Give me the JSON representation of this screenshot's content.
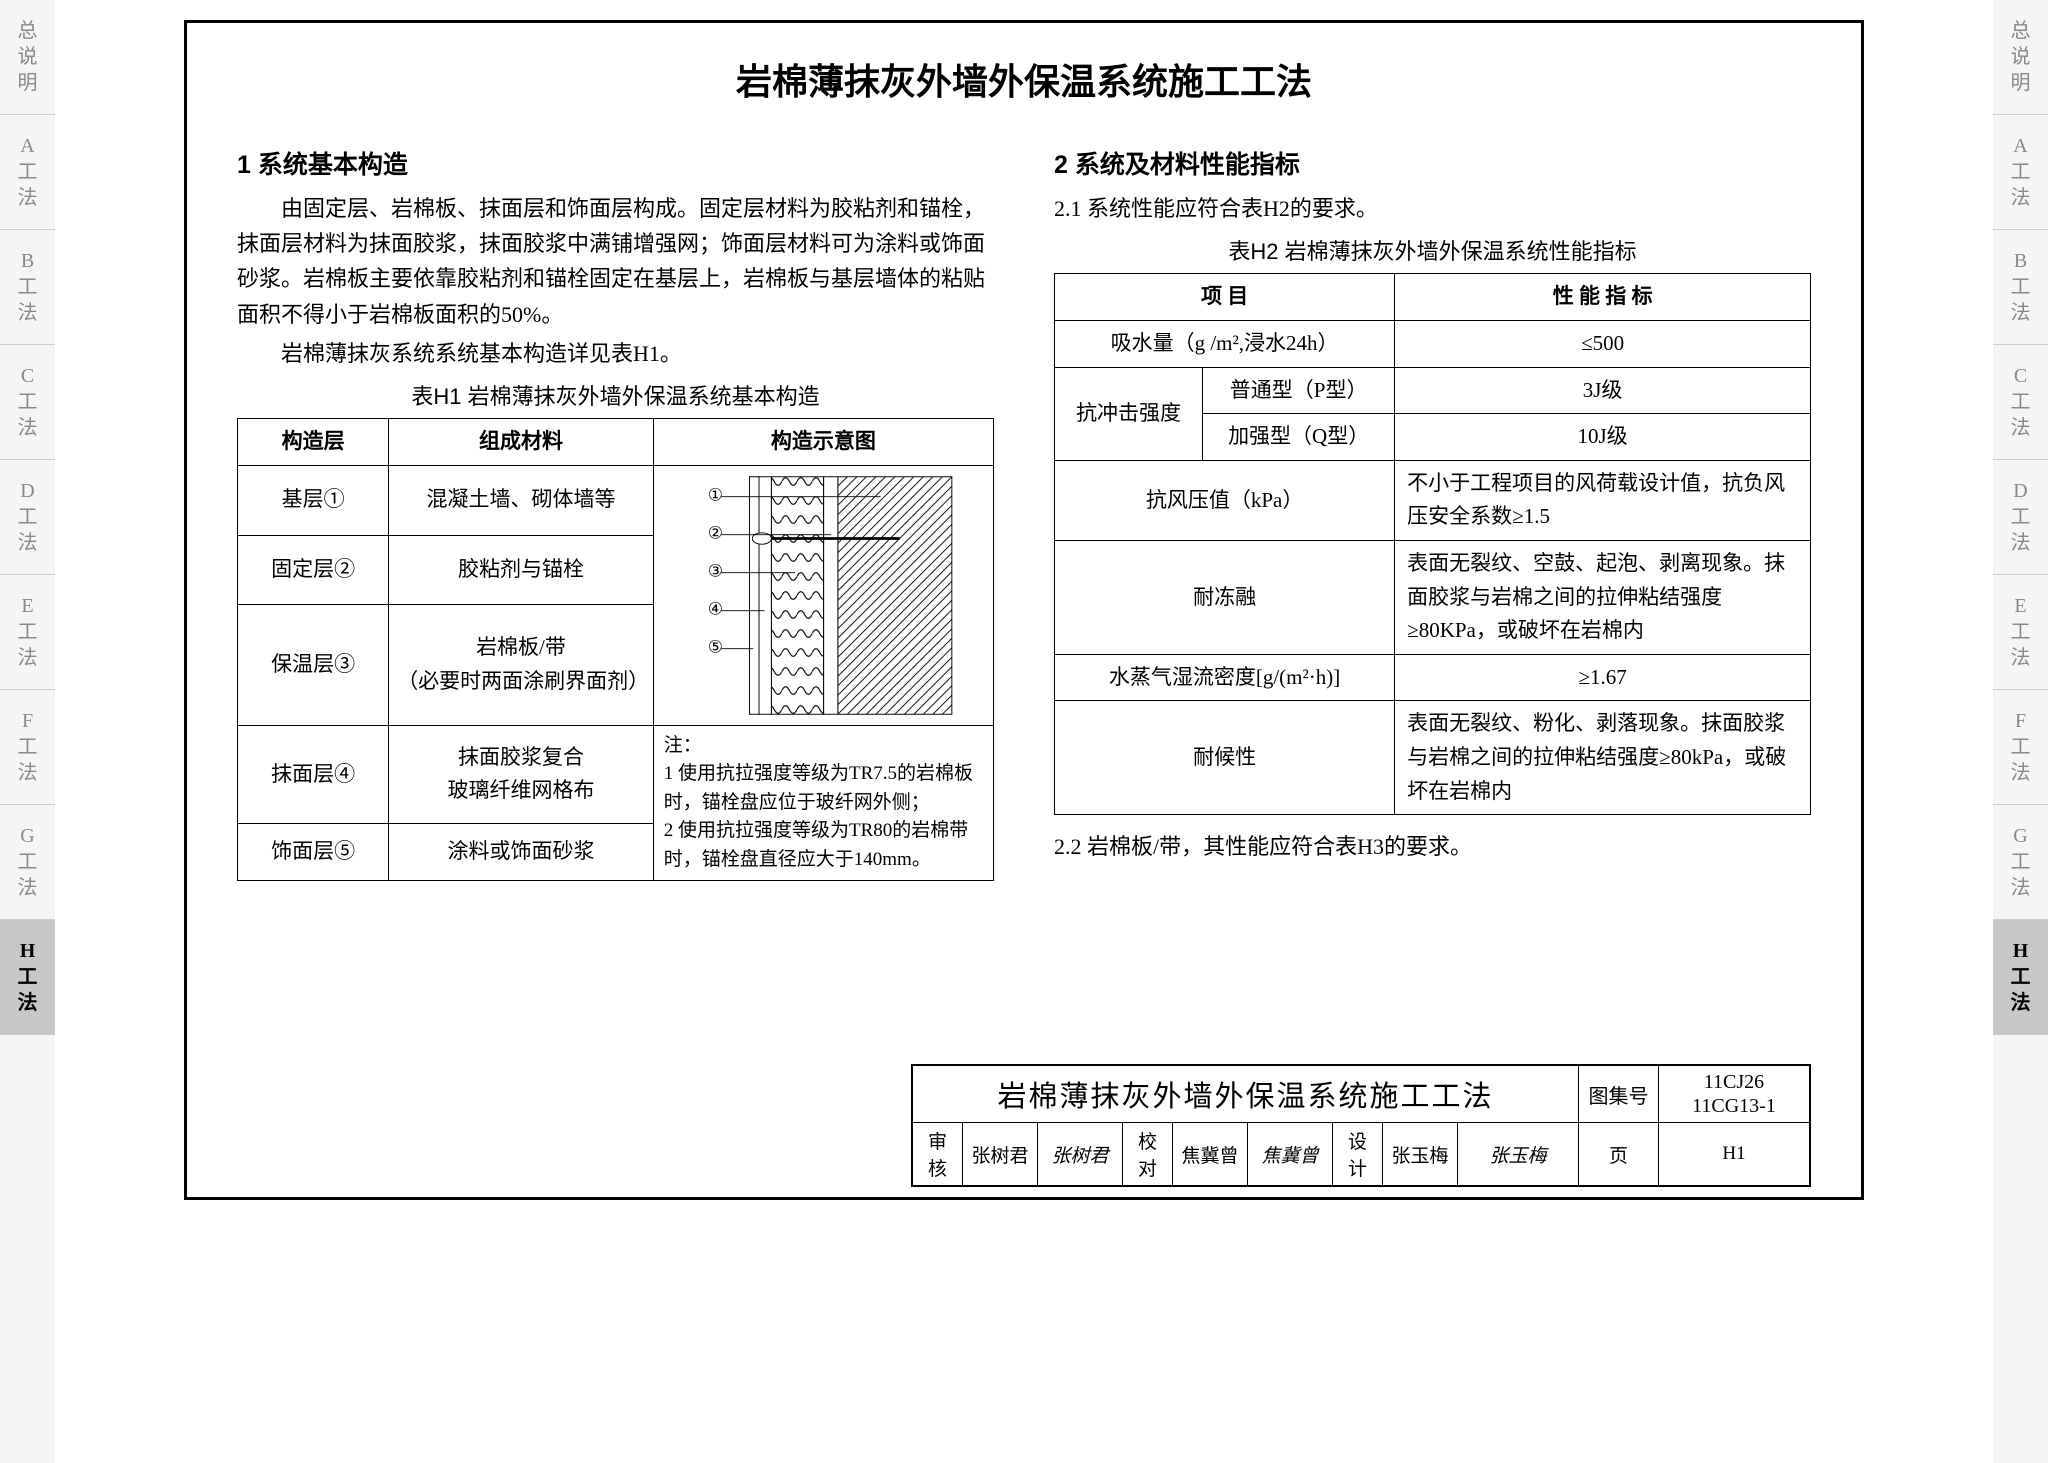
{
  "side_tabs": [
    "总说明",
    "A工法",
    "B工法",
    "C工法",
    "D工法",
    "E工法",
    "F工法",
    "G工法",
    "H工法"
  ],
  "active_tab_index": 8,
  "title": "岩棉薄抹灰外墙外保温系统施工工法",
  "section1": {
    "heading": "1 系统基本构造",
    "paragraphs": [
      "由固定层、岩棉板、抹面层和饰面层构成。固定层材料为胶粘剂和锚栓，抹面层材料为抹面胶浆，抹面胶浆中满铺增强网；饰面层材料可为涂料或饰面砂浆。岩棉板主要依靠胶粘剂和锚栓固定在基层上，岩棉板与基层墙体的粘贴面积不得小于岩棉板面积的50%。",
      "岩棉薄抹灰系统系统基本构造详见表H1。"
    ],
    "table_caption": "表H1  岩棉薄抹灰外墙外保温系统基本构造",
    "table": {
      "headers": [
        "构造层",
        "组成材料",
        "构造示意图"
      ],
      "rows": [
        {
          "layer": "基层①",
          "material": "混凝土墙、砌体墙等"
        },
        {
          "layer": "固定层②",
          "material": "胶粘剂与锚栓"
        },
        {
          "layer": "保温层③",
          "material": "岩棉板/带\n（必要时两面涂刷界面剂）"
        },
        {
          "layer": "抹面层④",
          "material": "抹面胶浆复合\n玻璃纤维网格布"
        },
        {
          "layer": "饰面层⑤",
          "material": "涂料或饰面砂浆"
        }
      ],
      "diagram_labels": [
        "①",
        "②",
        "③",
        "④",
        "⑤"
      ],
      "notes": "注：\n1 使用抗拉强度等级为TR7.5的岩棉板时，锚栓盘应位于玻纤网外侧；\n2 使用抗拉强度等级为TR80的岩棉带时，锚栓盘直径应大于140mm。"
    }
  },
  "section2": {
    "heading": "2 系统及材料性能指标",
    "sub1": "2.1 系统性能应符合表H2的要求。",
    "table_caption": "表H2  岩棉薄抹灰外墙外保温系统性能指标",
    "table": {
      "headers": [
        "项  目",
        "性  能  指  标"
      ],
      "rows": [
        {
          "item": "吸水量（g /m²,浸水24h）",
          "value": "≤500",
          "span": 2
        },
        {
          "item": "抗冲击强度",
          "sub": "普通型（P型）",
          "value": "3J级"
        },
        {
          "item": "",
          "sub": "加强型（Q型）",
          "value": "10J级"
        },
        {
          "item": "抗风压值（kPa）",
          "value": "不小于工程项目的风荷载设计值，抗负风压安全系数≥1.5",
          "span": 2
        },
        {
          "item": "耐冻融",
          "value": "表面无裂纹、空鼓、起泡、剥离现象。抹面胶浆与岩棉之间的拉伸粘结强度≥80KPa，或破坏在岩棉内",
          "span": 2
        },
        {
          "item": "水蒸气湿流密度[g/(m²·h)]",
          "value": "≥1.67",
          "span": 2
        },
        {
          "item": "耐候性",
          "value": "表面无裂纹、粉化、剥落现象。抹面胶浆与岩棉之间的拉伸粘结强度≥80kPa，或破坏在岩棉内",
          "span": 2
        }
      ]
    },
    "sub2": "2.2 岩棉板/带，其性能应符合表H3的要求。"
  },
  "title_block": {
    "main_title": "岩棉薄抹灰外墙外保温系统施工工法",
    "atlas_label": "图集号",
    "atlas_no": "11CJ26\n11CG13-1",
    "review_label": "审核",
    "reviewer": "张树君",
    "reviewer_sig": "张树君",
    "check_label": "校对",
    "checker": "焦冀曾",
    "checker_sig": "焦冀曾",
    "design_label": "设计",
    "designer": "张玉梅",
    "designer_sig": "张玉梅",
    "page_label": "页",
    "page_no": "H1"
  },
  "colors": {
    "border": "#000000",
    "bg": "#ffffff",
    "side_bg": "#f5f5f5",
    "side_active": "#c8c8c8",
    "side_text": "#888888"
  }
}
